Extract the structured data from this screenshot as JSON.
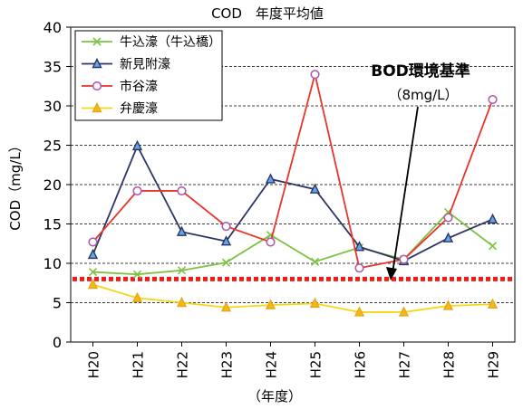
{
  "chart_data": {
    "type": "line",
    "title": "COD　年度平均値",
    "xlabel": "（年度）",
    "ylabel": "COD（mg/L）",
    "categories": [
      "H20",
      "H21",
      "H22",
      "H23",
      "H24",
      "H25",
      "H26",
      "H27",
      "H28",
      "H29"
    ],
    "ylim": [
      0,
      40
    ],
    "yticks": [
      0,
      5,
      10,
      15,
      20,
      25,
      30,
      35,
      40
    ],
    "grid": "horizontal dashed",
    "legend_position": "top-left",
    "series": [
      {
        "name": "牛込濠（牛込橋）",
        "color": "#7dc242",
        "marker": "x",
        "values": [
          8.9,
          8.6,
          9.1,
          10.1,
          13.6,
          10.2,
          12.0,
          10.5,
          16.5,
          12.2
        ]
      },
      {
        "name": "新見附濠",
        "color": "#2e3566",
        "marker": "triangle",
        "values": [
          11.1,
          24.9,
          14.0,
          12.8,
          20.7,
          19.4,
          12.1,
          10.3,
          13.2,
          15.6
        ]
      },
      {
        "name": "市谷濠",
        "color": "#e8352a",
        "marker": "circle",
        "values": [
          12.7,
          19.2,
          19.2,
          14.7,
          12.7,
          34.0,
          9.4,
          10.5,
          15.8,
          30.8
        ]
      },
      {
        "name": "弁慶濠",
        "color": "#f5d716",
        "marker": "triangle",
        "values": [
          7.3,
          5.6,
          5.0,
          4.4,
          4.7,
          4.9,
          3.8,
          3.8,
          4.6,
          4.8
        ]
      }
    ],
    "reference_line": {
      "value": 8,
      "color": "#ee1c1c",
      "style": "dotted"
    },
    "annotation": {
      "line1": "BOD環境基準",
      "line2": "（8mg/L）"
    }
  }
}
